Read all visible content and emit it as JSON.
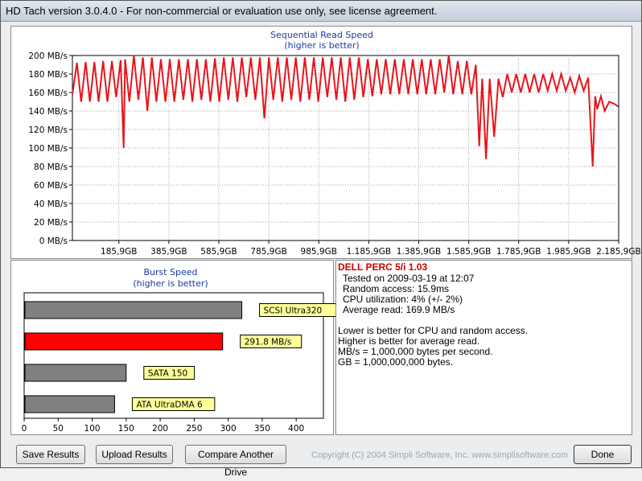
{
  "window": {
    "title": "HD Tach version 3.0.4.0  - For non-commercial or evaluation use only, see license agreement."
  },
  "read_chart": {
    "title": "Sequential Read Speed",
    "subtitle": "(higher is better)",
    "y_ticks": [
      "200 MB/s",
      "180 MB/s",
      "160 MB/s",
      "140 MB/s",
      "120 MB/s",
      "100 MB/s",
      "80 MB/s",
      "60 MB/s",
      "40 MB/s",
      "20 MB/s",
      "0 MB/s"
    ],
    "x_ticks": [
      "185,9GB",
      "385,9GB",
      "585,9GB",
      "785,9GB",
      "985,9GB",
      "1.185,9GB",
      "1.385,9GB",
      "1.585,9GB",
      "1.785,9GB",
      "1.985,9GB",
      "2.185,9GB"
    ],
    "line_color": "#e8141c"
  },
  "burst_chart": {
    "title": "Burst Speed",
    "subtitle": "(higher is better)",
    "x_ticks": [
      "0",
      "50",
      "100",
      "150",
      "200",
      "250",
      "300",
      "350",
      "400"
    ],
    "bars": [
      {
        "label": "SCSI Ultra320",
        "value": 320,
        "color": "#808080"
      },
      {
        "label": "291.8 MB/s",
        "value": 291.8,
        "color": "#ff0000"
      },
      {
        "label": "SATA 150",
        "value": 150,
        "color": "#808080"
      },
      {
        "label": "ATA UltraDMA 6",
        "value": 133,
        "color": "#808080"
      }
    ]
  },
  "chart_data": [
    {
      "type": "line",
      "title": "Sequential Read Speed",
      "subtitle": "(higher is better)",
      "ylabel": "",
      "xlabel": "",
      "ylim": [
        0,
        200
      ],
      "xlim": [
        0,
        2185.9
      ],
      "x_ticks": [
        "185,9GB",
        "385,9GB",
        "585,9GB",
        "785,9GB",
        "985,9GB",
        "1.185,9GB",
        "1.385,9GB",
        "1.585,9GB",
        "1.785,9GB",
        "1.985,9GB",
        "2.185,9GB"
      ],
      "grid": true,
      "series": [
        {
          "x": [
            0,
            18,
            35,
            53,
            70,
            88,
            105,
            123,
            140,
            158,
            175,
            193,
            205,
            211,
            228,
            246,
            264,
            282,
            300,
            318,
            336,
            354,
            372,
            390,
            408,
            426,
            444,
            462,
            480,
            498,
            516,
            534,
            552,
            570,
            588,
            606,
            624,
            642,
            660,
            678,
            696,
            714,
            732,
            750,
            768,
            786,
            804,
            822,
            840,
            858,
            876,
            894,
            912,
            930,
            948,
            966,
            984,
            1002,
            1020,
            1038,
            1056,
            1074,
            1092,
            1110,
            1128,
            1146,
            1164,
            1182,
            1200,
            1218,
            1236,
            1254,
            1272,
            1290,
            1308,
            1326,
            1344,
            1362,
            1380,
            1398,
            1416,
            1434,
            1452,
            1470,
            1488,
            1506,
            1524,
            1542,
            1560,
            1578,
            1596,
            1614,
            1628,
            1640,
            1655,
            1670,
            1688,
            1705,
            1722,
            1740,
            1758,
            1776,
            1794,
            1812,
            1830,
            1848,
            1866,
            1884,
            1902,
            1920,
            1938,
            1956,
            1974,
            1992,
            2010,
            2028,
            2046,
            2064,
            2082,
            2092,
            2100,
            2115,
            2130,
            2148,
            2166,
            2185
          ],
          "y": [
            158,
            192,
            150,
            193,
            150,
            193,
            150,
            194,
            150,
            194,
            155,
            195,
            100,
            196,
            150,
            200,
            152,
            198,
            140,
            198,
            150,
            196,
            150,
            196,
            150,
            196,
            152,
            196,
            150,
            196,
            152,
            196,
            150,
            197,
            150,
            198,
            152,
            198,
            150,
            198,
            155,
            198,
            152,
            198,
            132,
            198,
            152,
            198,
            150,
            198,
            152,
            198,
            150,
            198,
            152,
            198,
            150,
            198,
            155,
            198,
            152,
            198,
            150,
            198,
            152,
            198,
            155,
            196,
            156,
            196,
            158,
            196,
            158,
            196,
            158,
            196,
            158,
            196,
            158,
            196,
            158,
            196,
            158,
            196,
            160,
            200,
            158,
            194,
            158,
            194,
            158,
            190,
            102,
            175,
            88,
            175,
            112,
            175,
            155,
            180,
            160,
            180,
            160,
            180,
            160,
            180,
            160,
            180,
            162,
            180,
            162,
            180,
            162,
            176,
            160,
            178,
            162,
            176,
            80,
            156,
            142,
            156,
            140,
            150,
            148,
            145
          ]
        }
      ]
    },
    {
      "type": "bar",
      "orientation": "horizontal",
      "title": "Burst Speed",
      "subtitle": "(higher is better)",
      "categories": [
        "SCSI Ultra320",
        "291.8 MB/s",
        "SATA 150",
        "ATA UltraDMA 6"
      ],
      "values": [
        320,
        291.8,
        150,
        133
      ],
      "xlim": [
        0,
        440
      ],
      "x_ticks": [
        "0",
        "50",
        "100",
        "150",
        "200",
        "250",
        "300",
        "350",
        "400"
      ]
    }
  ],
  "info": {
    "drive_name": "DELL PERC 5/i 1.03",
    "tested_on": "Tested on 2009-03-19 at 12:07",
    "random_access": "Random access: 15.9ms",
    "cpu_util": "CPU utilization: 4% (+/- 2%)",
    "average_read": "Average read: 169.9 MB/s",
    "notes": [
      "Lower is better for CPU and random access.",
      "Higher is better for average read.",
      "MB/s = 1,000,000 bytes per second.",
      "GB = 1,000,000,000 bytes."
    ]
  },
  "buttons": {
    "save": "Save Results",
    "upload": "Upload Results",
    "compare": "Compare Another Drive",
    "done": "Done"
  },
  "footer": {
    "copyright": "Copyright (C) 2004 Simpli Software, Inc. www.simplisoftware.com"
  }
}
